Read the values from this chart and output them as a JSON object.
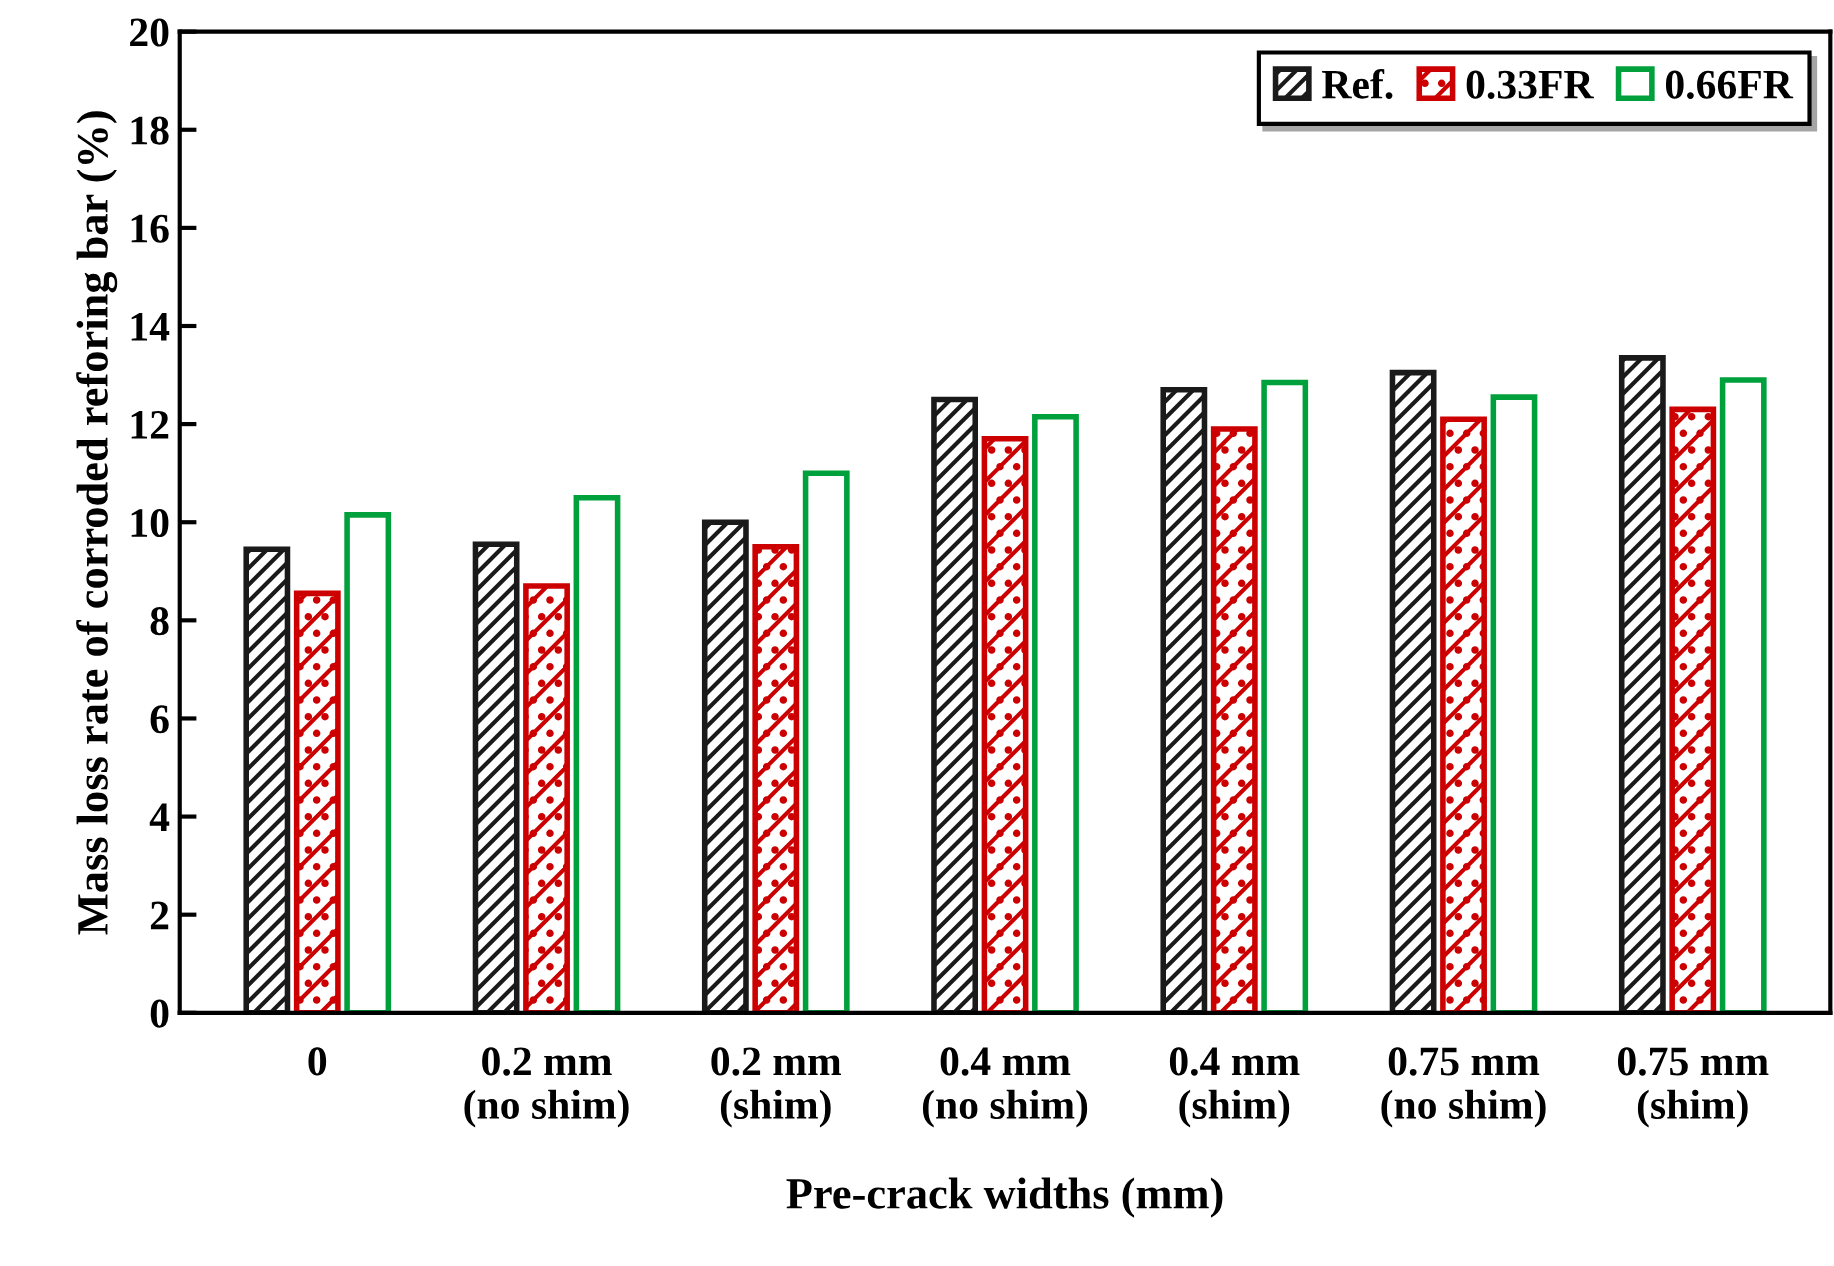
{
  "chart_data": {
    "type": "bar",
    "xlabel": "Pre-crack widths (mm)",
    "ylabel": "Mass loss rate of corroded reforing bar (%)",
    "categories": [
      "0",
      "0.2 mm\n(no shim)",
      "0.2 mm\n(shim)",
      "0.4 mm\n(no shim)",
      "0.4 mm\n(shim)",
      "0.75 mm\n(no shim)",
      "0.75 mm\n(shim)"
    ],
    "series": [
      {
        "name": "Ref.",
        "color": "#1a1a1a",
        "values": [
          9.45,
          9.55,
          10.0,
          12.5,
          12.7,
          13.05,
          13.35
        ]
      },
      {
        "name": "0.33FR",
        "color": "#cc0000",
        "values": [
          8.55,
          8.7,
          9.5,
          11.7,
          11.9,
          12.1,
          12.3
        ]
      },
      {
        "name": "0.66FR",
        "color": "#00a03c",
        "values": [
          10.15,
          10.5,
          11.0,
          12.15,
          12.85,
          12.55,
          12.9
        ]
      }
    ],
    "ylim": [
      0,
      20
    ],
    "yticks": [
      0,
      2,
      4,
      6,
      8,
      10,
      12,
      14,
      16,
      18,
      20
    ],
    "grid": false,
    "legend": "top right"
  }
}
